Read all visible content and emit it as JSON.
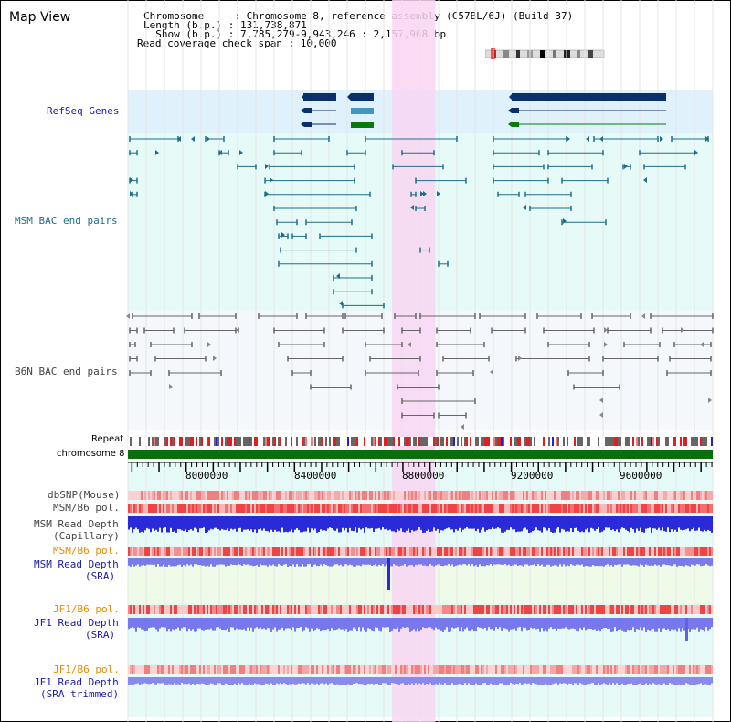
{
  "title": "Map View",
  "header": {
    "line1": "Chromosome     : Chromosome 8, reference assembly (C57BL/6J) (Build 37)",
    "line2": "Length (b.p.) : 131,738,871",
    "line3": "  Show (b.p.) : 7,785,279-9,943,246 : 2,157,968 bp",
    "line4": "Read coverage check span : 10,000"
  },
  "tracks": {
    "refseq": "RefSeq Genes",
    "msm_bac": "MSM BAC end pairs",
    "b6n_bac": "B6N BAC end pairs",
    "repeat": "Repeat",
    "chromosome": "chromosome 8",
    "dbsnp": "dbSNP(Mouse)",
    "msm_b6_pol": "MSM/B6 pol.",
    "msm_read_depth_cap_1": "MSM Read Depth",
    "msm_read_depth_cap_2": "(Capillary)",
    "msm_b6_pol_2": "MSM/B6 pol.",
    "msm_read_depth_sra_1": "MSM Read Depth",
    "msm_read_depth_sra_2": "(SRA)",
    "jf1_b6_pol": "JF1/B6 pol.",
    "jf1_read_depth_sra_1": "JF1 Read Depth",
    "jf1_read_depth_sra_2": "(SRA)",
    "jf1_b6_pol_2": "JF1/B6 pol.",
    "jf1_read_depth_trim_1": "JF1 Read Depth",
    "jf1_read_depth_trim_2": "(SRA trimmed)"
  },
  "axis": {
    "ticks": [
      "8000000",
      "8400000",
      "8800000",
      "9200000",
      "9600000"
    ],
    "range": [
      7785279,
      9943246
    ]
  },
  "highlight_region": [
    8760000,
    8920000
  ],
  "colors": {
    "refseq_bg": "#dff2fb",
    "msm_bg": "#e6fbf7",
    "b6n_bg": "#f4f7fb",
    "highlight": "#f8d6f2",
    "gene_dark": "#0b2f6b",
    "gene_mid": "#4496c0",
    "gene_green": "#0a7a0a",
    "msm_line": "#1e6e8a",
    "b6n_line": "#666666",
    "chrom_green": "#0a6e0a",
    "label_blue": "#1a1aa8",
    "label_teal": "#1f6e8c",
    "label_orange": "#e48a00",
    "label_gray": "#444444",
    "depth_blue": "#2a2ad8",
    "depth_light": "#8888ee",
    "pol_red": "#ee4444"
  }
}
